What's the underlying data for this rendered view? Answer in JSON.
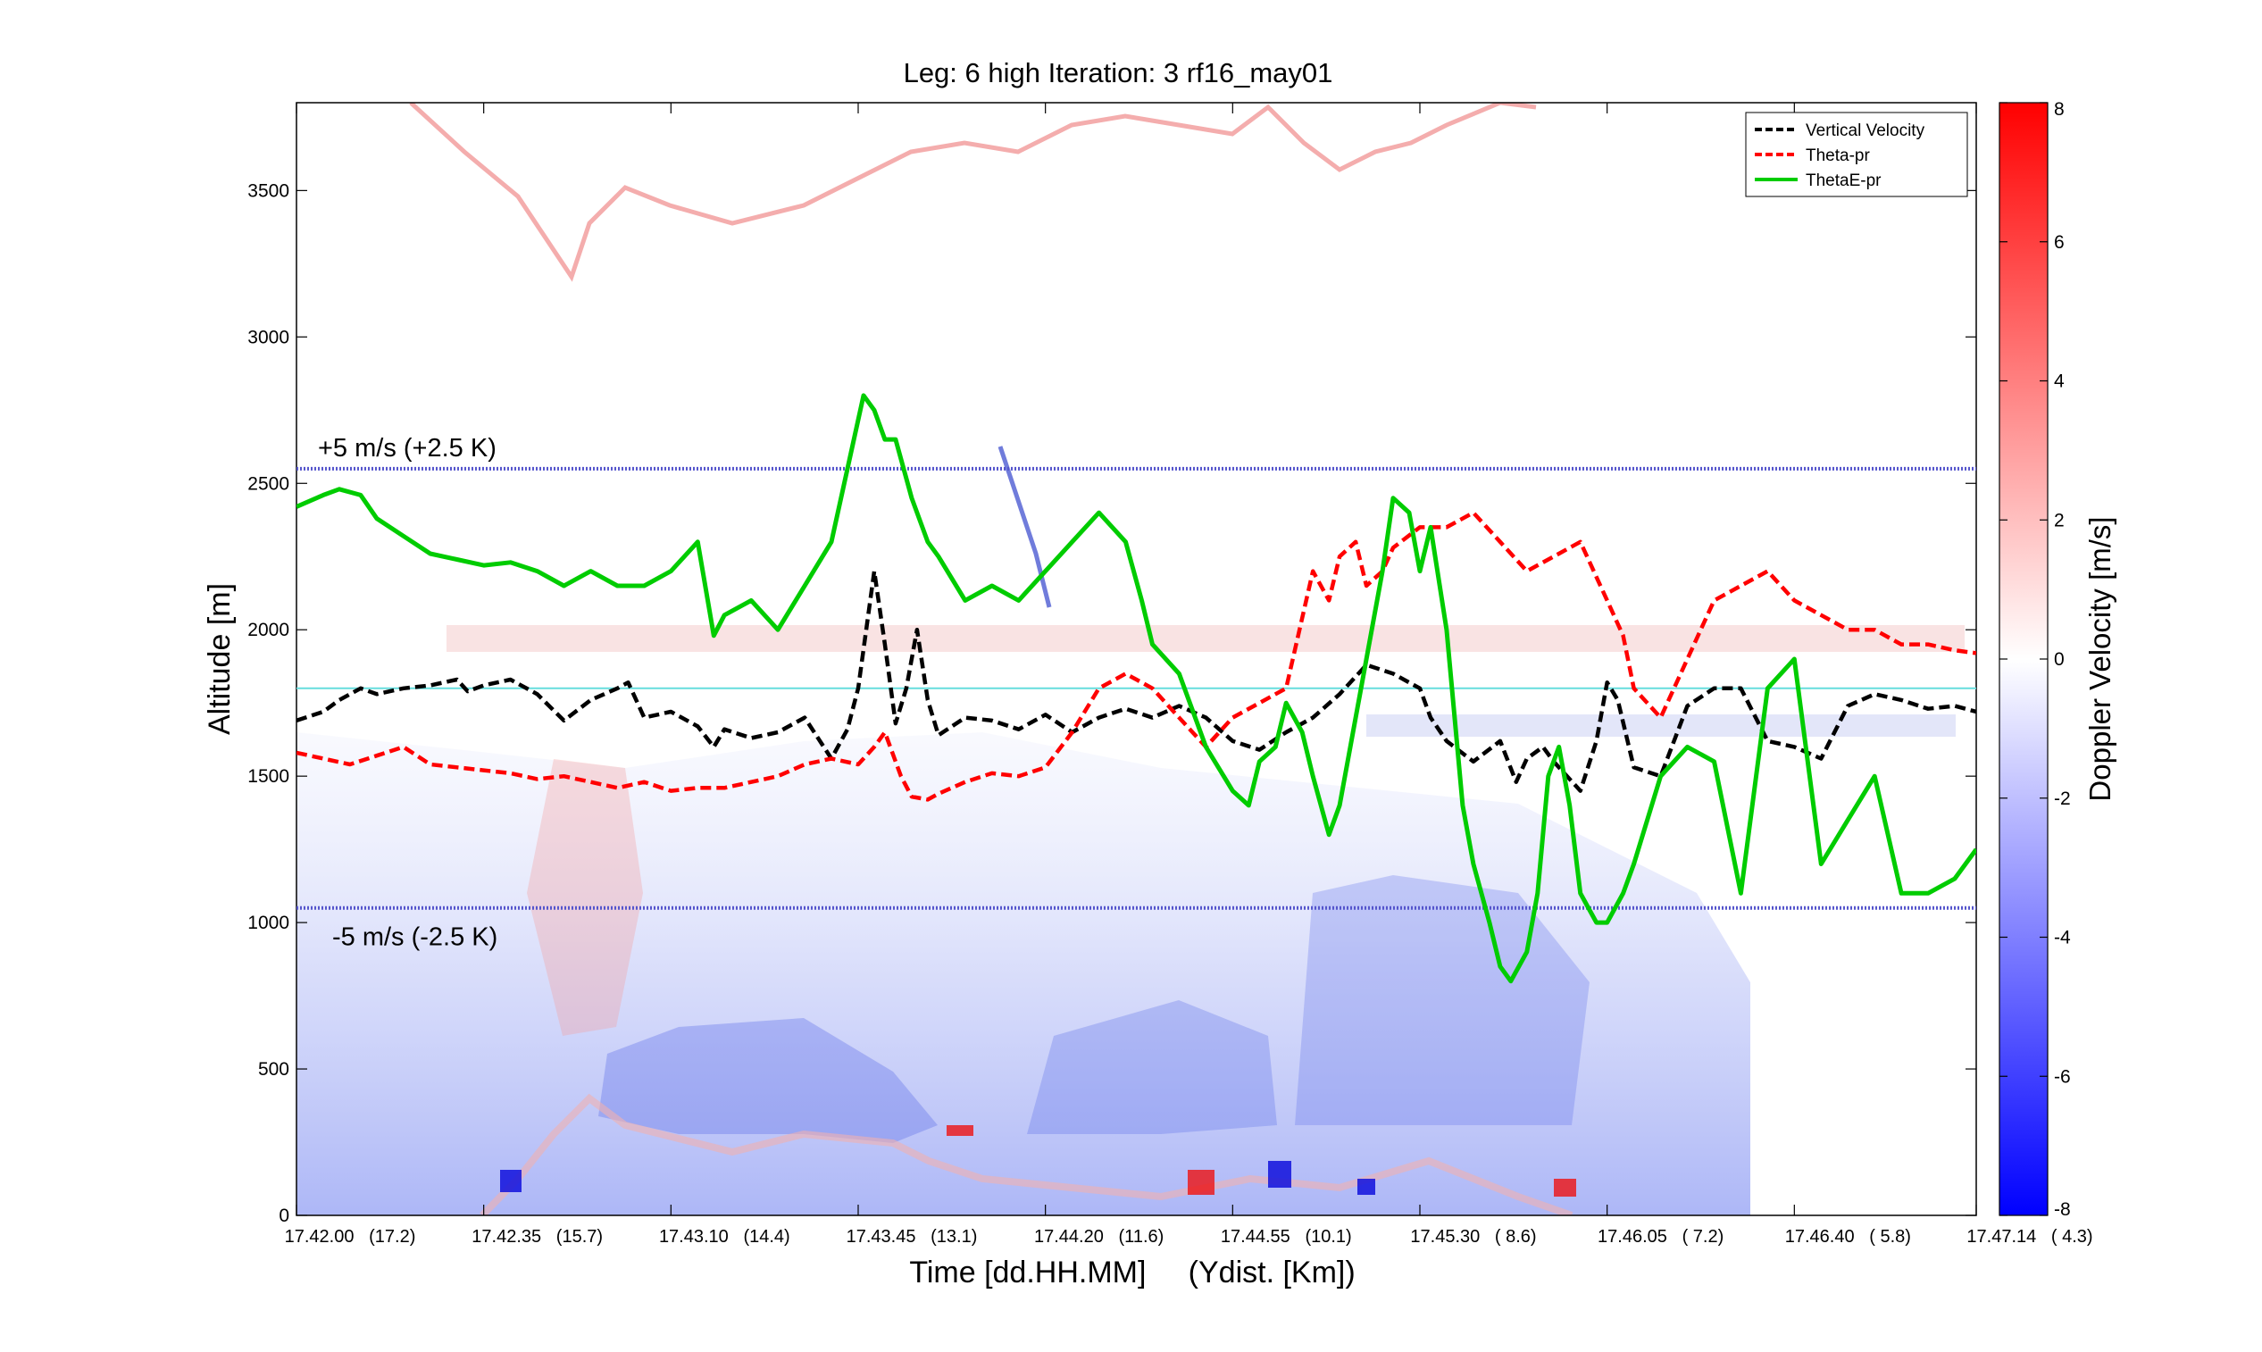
{
  "chart_data": {
    "type": "line",
    "title": "Leg: 6 high Iteration: 3  rf16_may01",
    "xlabel": "Time [dd.HH.MM]     (Ydist. [Km])",
    "ylabel": "Altitude [m]",
    "ylim": [
      0,
      3800
    ],
    "yticks": [
      0,
      500,
      1000,
      1500,
      2000,
      2500,
      3000,
      3500
    ],
    "xlim": [
      0,
      314
    ],
    "xticks": [
      {
        "t": 0,
        "label": "17.42.00   (17.2)"
      },
      {
        "t": 35,
        "label": "17.42.35   (15.7)"
      },
      {
        "t": 70,
        "label": "17.43.10   (14.4)"
      },
      {
        "t": 105,
        "label": "17.43.45   (13.1)"
      },
      {
        "t": 140,
        "label": "17.44.20   (11.6)"
      },
      {
        "t": 175,
        "label": "17.44.55   (10.1)"
      },
      {
        "t": 210,
        "label": "17.45.30   ( 8.6)"
      },
      {
        "t": 245,
        "label": "17.46.05   ( 7.2)"
      },
      {
        "t": 280,
        "label": "17.46.40   ( 5.8)"
      },
      {
        "t": 314,
        "label": "17.47.14   ( 4.3)"
      }
    ],
    "grid": false,
    "legend_position": "top-right",
    "colorbar": {
      "label": "Doppler Velocity [m/s]",
      "range": [
        -8,
        8
      ],
      "ticks": [
        -8,
        -6,
        -4,
        -2,
        0,
        2,
        4,
        6,
        8
      ],
      "low_color": "#0000ff",
      "mid_color": "#ffffff",
      "high_color": "#ff0000"
    },
    "reference_lines": [
      {
        "y": 2550,
        "label": "+5 m/s (+2.5 K)",
        "color": "#5555cc"
      },
      {
        "y": 1800,
        "label": "",
        "color": "#66dddd"
      },
      {
        "y": 1050,
        "label": "-5 m/s (-2.5 K)",
        "color": "#5555cc"
      }
    ],
    "series": [
      {
        "name": "Vertical Velocity",
        "color": "#000000",
        "dash": "dashed",
        "x": [
          0,
          5,
          8,
          12,
          15,
          20,
          25,
          30,
          32,
          35,
          40,
          45,
          50,
          55,
          60,
          62,
          65,
          70,
          75,
          78,
          80,
          85,
          90,
          95,
          100,
          103,
          105,
          108,
          110,
          112,
          114,
          116,
          118,
          120,
          125,
          130,
          135,
          140,
          145,
          150,
          155,
          160,
          165,
          170,
          175,
          180,
          185,
          190,
          195,
          200,
          205,
          210,
          212,
          215,
          220,
          225,
          228,
          230,
          233,
          235,
          240,
          243,
          245,
          247,
          250,
          255,
          260,
          265,
          270,
          275,
          280,
          285,
          290,
          295,
          300,
          305,
          310,
          314
        ],
        "y": [
          1690,
          1720,
          1760,
          1800,
          1780,
          1800,
          1810,
          1830,
          1790,
          1810,
          1830,
          1780,
          1690,
          1760,
          1800,
          1820,
          1700,
          1720,
          1670,
          1600,
          1660,
          1630,
          1650,
          1700,
          1560,
          1660,
          1800,
          2200,
          1950,
          1680,
          1800,
          2000,
          1760,
          1640,
          1700,
          1690,
          1660,
          1710,
          1650,
          1700,
          1730,
          1700,
          1740,
          1700,
          1620,
          1590,
          1650,
          1700,
          1780,
          1880,
          1850,
          1800,
          1700,
          1620,
          1550,
          1620,
          1480,
          1560,
          1600,
          1550,
          1450,
          1620,
          1820,
          1760,
          1530,
          1500,
          1740,
          1800,
          1800,
          1620,
          1600,
          1560,
          1740,
          1780,
          1760,
          1730,
          1740,
          1720
        ]
      },
      {
        "name": "Theta-pr",
        "color": "#ff0000",
        "dash": "dashed",
        "x": [
          0,
          5,
          10,
          15,
          20,
          25,
          30,
          35,
          40,
          45,
          50,
          55,
          60,
          65,
          70,
          75,
          80,
          85,
          90,
          95,
          100,
          105,
          108,
          110,
          113,
          115,
          118,
          120,
          125,
          130,
          135,
          140,
          145,
          150,
          155,
          160,
          165,
          170,
          175,
          180,
          185,
          190,
          193,
          195,
          198,
          200,
          203,
          205,
          210,
          215,
          220,
          225,
          230,
          235,
          240,
          245,
          248,
          250,
          255,
          260,
          265,
          270,
          275,
          280,
          285,
          290,
          295,
          300,
          305,
          310,
          314
        ],
        "y": [
          1580,
          1560,
          1540,
          1570,
          1600,
          1540,
          1530,
          1520,
          1510,
          1490,
          1500,
          1480,
          1460,
          1480,
          1450,
          1460,
          1460,
          1480,
          1500,
          1540,
          1560,
          1540,
          1600,
          1650,
          1500,
          1430,
          1420,
          1440,
          1480,
          1510,
          1500,
          1530,
          1650,
          1800,
          1850,
          1800,
          1700,
          1600,
          1700,
          1750,
          1800,
          2200,
          2100,
          2250,
          2300,
          2150,
          2200,
          2280,
          2350,
          2350,
          2400,
          2300,
          2200,
          2250,
          2300,
          2100,
          1980,
          1800,
          1700,
          1900,
          2100,
          2150,
          2200,
          2100,
          2050,
          2000,
          2000,
          1950,
          1950,
          1930,
          1920
        ]
      },
      {
        "name": "ThetaE-pr",
        "color": "#00cc00",
        "dash": "solid",
        "x": [
          0,
          5,
          8,
          12,
          15,
          20,
          25,
          30,
          35,
          40,
          45,
          50,
          55,
          60,
          65,
          70,
          75,
          78,
          80,
          85,
          90,
          95,
          100,
          103,
          106,
          108,
          110,
          112,
          115,
          118,
          120,
          125,
          130,
          135,
          140,
          145,
          150,
          155,
          158,
          160,
          165,
          170,
          175,
          178,
          180,
          183,
          185,
          188,
          190,
          193,
          195,
          198,
          200,
          203,
          205,
          208,
          210,
          212,
          215,
          218,
          220,
          223,
          225,
          227,
          230,
          232,
          234,
          236,
          238,
          240,
          243,
          245,
          248,
          250,
          255,
          260,
          265,
          270,
          275,
          280,
          285,
          290,
          295,
          300,
          305,
          310,
          314
        ],
        "y": [
          2420,
          2460,
          2480,
          2460,
          2380,
          2320,
          2260,
          2240,
          2220,
          2230,
          2200,
          2150,
          2200,
          2150,
          2150,
          2200,
          2300,
          1980,
          2050,
          2100,
          2000,
          2150,
          2300,
          2550,
          2800,
          2750,
          2650,
          2650,
          2450,
          2300,
          2250,
          2100,
          2150,
          2100,
          2200,
          2300,
          2400,
          2300,
          2100,
          1950,
          1850,
          1600,
          1450,
          1400,
          1550,
          1600,
          1750,
          1650,
          1500,
          1300,
          1400,
          1700,
          1900,
          2200,
          2450,
          2400,
          2200,
          2350,
          2000,
          1400,
          1200,
          1000,
          850,
          800,
          900,
          1100,
          1500,
          1600,
          1400,
          1100,
          1000,
          1000,
          1100,
          1200,
          1500,
          1600,
          1550,
          1100,
          1800,
          1900,
          1200,
          1350,
          1500,
          1100,
          1100,
          1150,
          1250
        ]
      }
    ]
  }
}
